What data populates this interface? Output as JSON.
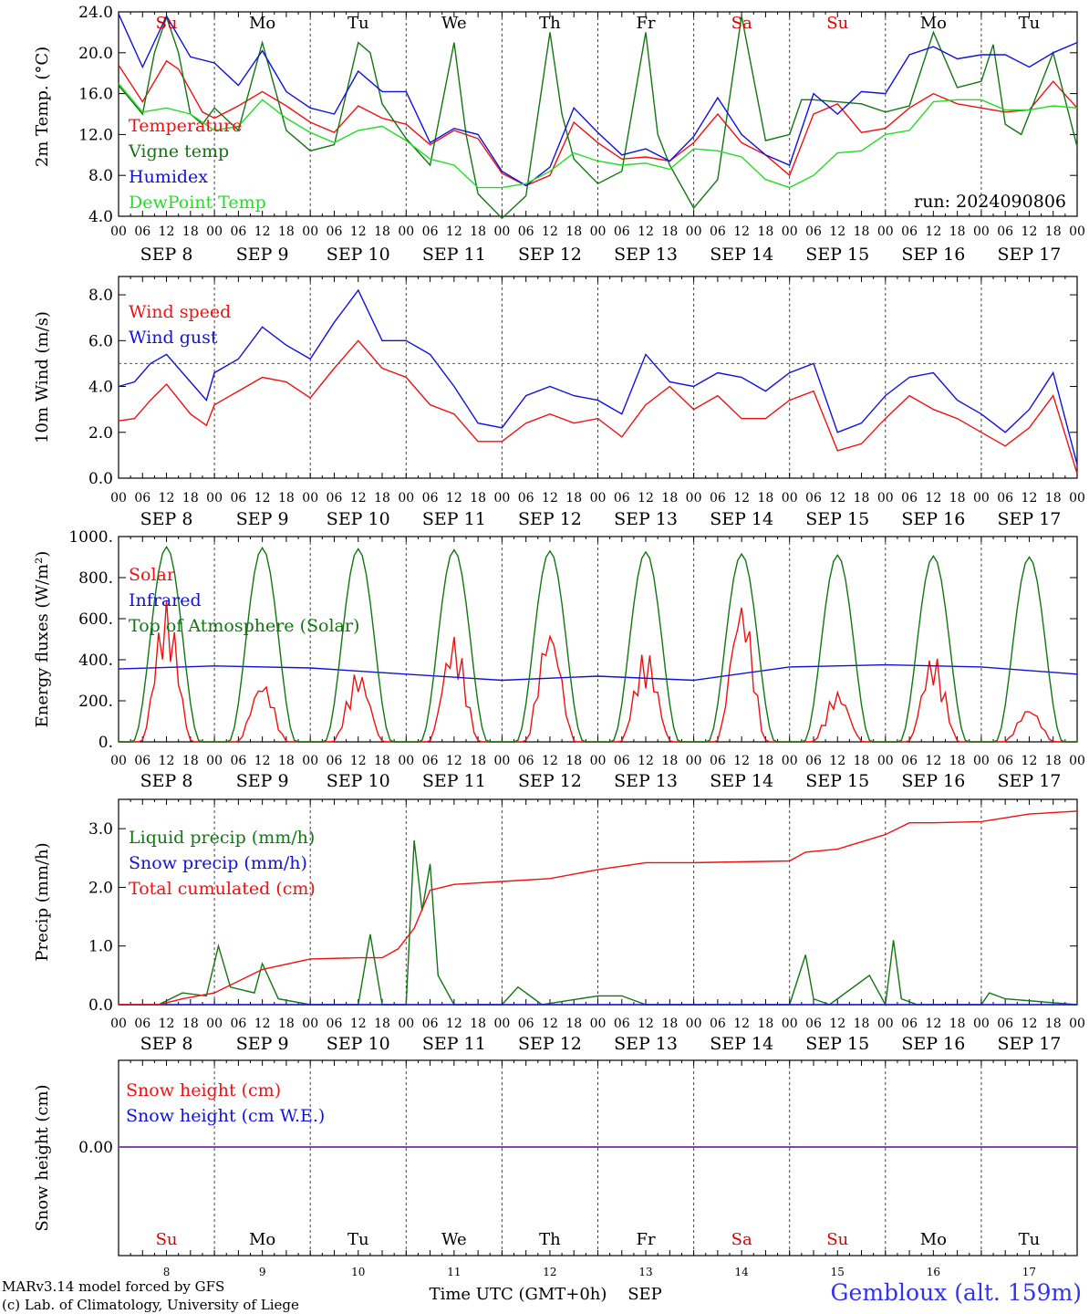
{
  "chart_data": [
    {
      "type": "line",
      "ylabel": "2m Temp. (°C)",
      "ylim": [
        4,
        24
      ],
      "yticks": [
        "4.0",
        "8.0",
        "12.0",
        "16.0",
        "20.0",
        "24.0"
      ],
      "annotation": "run: 2024090806",
      "weekday_labels": [
        {
          "label": "Su",
          "color": "#dd0000"
        },
        {
          "label": "Mo",
          "color": "#000000"
        },
        {
          "label": "Tu",
          "color": "#000000"
        },
        {
          "label": "We",
          "color": "#000000"
        },
        {
          "label": "Th",
          "color": "#000000"
        },
        {
          "label": "Fr",
          "color": "#000000"
        },
        {
          "label": "Sa",
          "color": "#dd0000"
        },
        {
          "label": "Su",
          "color": "#dd0000"
        },
        {
          "label": "Mo",
          "color": "#000000"
        },
        {
          "label": "Tu",
          "color": "#000000"
        }
      ],
      "series": [
        {
          "name": "Temperature",
          "color": "#ee1111",
          "x": [
            0,
            6,
            12,
            15,
            21,
            24,
            30,
            36,
            42,
            48,
            54,
            60,
            66,
            72,
            78,
            84,
            90,
            96,
            102,
            108,
            114,
            120,
            126,
            132,
            138,
            144,
            150,
            156,
            162,
            168,
            174,
            180,
            186,
            192,
            198,
            204,
            210,
            216,
            222,
            228,
            234,
            240
          ],
          "y": [
            18.8,
            15.2,
            19.2,
            18.4,
            14.2,
            13.6,
            14.8,
            16.2,
            14.8,
            13.2,
            12.2,
            14.8,
            13.6,
            13,
            11,
            12.4,
            11.6,
            8.2,
            7,
            8,
            13.2,
            11.2,
            9.6,
            9.8,
            9.4,
            11.2,
            14,
            11.2,
            10,
            8,
            14,
            15,
            12.2,
            12.6,
            14.6,
            16,
            15,
            14.6,
            14.2,
            14.4,
            17.2,
            14.6
          ]
        },
        {
          "name": "Vigne temp",
          "color": "#117711",
          "x": [
            0,
            6,
            9,
            12,
            15,
            18,
            21,
            24,
            30,
            36,
            42,
            48,
            54,
            60,
            63,
            66,
            72,
            78,
            84,
            87,
            90,
            96,
            102,
            108,
            111,
            114,
            120,
            126,
            132,
            135,
            138,
            144,
            150,
            156,
            162,
            168,
            171,
            174,
            180,
            186,
            192,
            198,
            204,
            210,
            216,
            219,
            222,
            226,
            228,
            234,
            240
          ],
          "y": [
            16.8,
            14,
            20,
            23.5,
            20,
            14,
            13,
            14.6,
            12.4,
            21,
            12.4,
            10.4,
            11,
            21,
            20,
            15,
            11.6,
            9,
            21,
            12,
            6.2,
            3.8,
            6,
            22,
            14,
            9.6,
            7.2,
            8.4,
            22,
            12,
            9,
            4.8,
            7.6,
            23.6,
            11.4,
            12,
            15.4,
            15.4,
            15.2,
            15,
            14.2,
            14.8,
            22,
            16.6,
            17.2,
            20.8,
            13,
            12,
            14,
            20,
            10.8
          ]
        },
        {
          "name": "Humidex",
          "color": "#1111dd",
          "x": [
            0,
            6,
            12,
            18,
            24,
            30,
            36,
            42,
            48,
            54,
            60,
            66,
            72,
            78,
            84,
            90,
            96,
            102,
            108,
            114,
            120,
            126,
            132,
            138,
            144,
            150,
            156,
            162,
            168,
            174,
            180,
            186,
            192,
            198,
            204,
            210,
            216,
            222,
            228,
            234,
            240
          ],
          "y": [
            23.8,
            18.6,
            23.6,
            19.6,
            19,
            16.8,
            20.2,
            16.2,
            14.6,
            14,
            18.2,
            16.2,
            16.2,
            11.2,
            12.6,
            12,
            8.4,
            7,
            8.8,
            14.6,
            12.2,
            10,
            10.6,
            9.4,
            11.8,
            15.6,
            12,
            10,
            9,
            16,
            14,
            16.2,
            16,
            19.8,
            20.6,
            19.4,
            19.8,
            19.8,
            18.6,
            20,
            21
          ]
        },
        {
          "name": "DewPoint Temp",
          "color": "#22dd22",
          "x": [
            0,
            6,
            12,
            18,
            24,
            30,
            36,
            42,
            48,
            54,
            60,
            66,
            72,
            78,
            84,
            90,
            96,
            102,
            108,
            114,
            120,
            126,
            132,
            138,
            144,
            150,
            156,
            162,
            168,
            174,
            180,
            186,
            192,
            198,
            204,
            210,
            216,
            222,
            228,
            234,
            240
          ],
          "y": [
            17,
            14.2,
            14.6,
            14,
            12.4,
            12.8,
            15.4,
            13.6,
            12.2,
            11.2,
            12.4,
            12.8,
            11.4,
            9.6,
            9,
            6.8,
            6.8,
            7.2,
            8.4,
            10.2,
            9.4,
            9,
            9.2,
            8.6,
            10.6,
            10.4,
            9.8,
            7.6,
            6.8,
            8,
            10.2,
            10.4,
            12,
            12.4,
            15.2,
            15.4,
            15.4,
            14.4,
            14.4,
            14.8,
            14.6
          ]
        }
      ]
    },
    {
      "type": "line",
      "ylabel": "10m Wind (m/s)",
      "ylim": [
        0,
        8.8
      ],
      "yticks": [
        "0.0",
        "2.0",
        "4.0",
        "6.0",
        "8.0"
      ],
      "reference_line": 5,
      "series": [
        {
          "name": "Wind speed",
          "color": "#ee1111",
          "x": [
            0,
            4,
            8,
            12,
            18,
            22,
            24,
            30,
            36,
            42,
            48,
            54,
            60,
            66,
            72,
            78,
            84,
            90,
            96,
            102,
            108,
            114,
            120,
            126,
            132,
            138,
            144,
            150,
            156,
            162,
            168,
            174,
            180,
            186,
            192,
            198,
            204,
            210,
            216,
            222,
            228,
            234,
            240
          ],
          "y": [
            2.5,
            2.6,
            3.4,
            4.1,
            2.8,
            2.3,
            3.2,
            3.8,
            4.4,
            4.2,
            3.5,
            4.8,
            6,
            4.8,
            4.4,
            3.2,
            2.8,
            1.6,
            1.6,
            2.4,
            2.8,
            2.4,
            2.6,
            1.8,
            3.2,
            4,
            3,
            3.6,
            2.6,
            2.6,
            3.4,
            3.8,
            1.2,
            1.5,
            2.6,
            3.6,
            3,
            2.6,
            2,
            1.4,
            2.2,
            3.6,
            0.2
          ]
        },
        {
          "name": "Wind gust",
          "color": "#1111dd",
          "x": [
            0,
            4,
            8,
            12,
            18,
            22,
            24,
            30,
            36,
            42,
            48,
            54,
            60,
            66,
            72,
            78,
            84,
            90,
            96,
            102,
            108,
            114,
            120,
            126,
            132,
            138,
            144,
            150,
            156,
            162,
            168,
            174,
            180,
            186,
            192,
            198,
            204,
            210,
            216,
            222,
            228,
            234,
            240
          ],
          "y": [
            4,
            4.2,
            5,
            5.4,
            4.2,
            3.4,
            4.6,
            5.2,
            6.6,
            5.8,
            5.2,
            6.8,
            8.2,
            6,
            6,
            5.4,
            4,
            2.4,
            2.2,
            3.6,
            4,
            3.6,
            3.4,
            2.8,
            5.4,
            4.2,
            4,
            4.6,
            4.4,
            3.8,
            4.6,
            5,
            2,
            2.4,
            3.6,
            4.4,
            4.6,
            3.4,
            2.8,
            2,
            3,
            4.6,
            0.6
          ]
        }
      ]
    },
    {
      "type": "line",
      "ylabel": "Energy fluxes (W/m²)",
      "ylim": [
        0,
        1000
      ],
      "yticks": [
        "0.",
        "200.",
        "400.",
        "600.",
        "800.",
        "1000."
      ],
      "series": [
        {
          "name": "Solar",
          "color": "#ee1111",
          "peak_hours": [
            12,
            36,
            60,
            84,
            108,
            132,
            156,
            180,
            204,
            228
          ],
          "peaks": [
            690,
            300,
            350,
            520,
            570,
            450,
            700,
            250,
            430,
            170
          ]
        },
        {
          "name": "Infrared",
          "color": "#1111dd",
          "x": [
            0,
            24,
            48,
            72,
            96,
            120,
            144,
            168,
            192,
            216,
            240
          ],
          "y": [
            355,
            370,
            360,
            330,
            300,
            320,
            300,
            365,
            375,
            365,
            330
          ]
        },
        {
          "name": "Top of Atmosphere (Solar)",
          "color": "#117711",
          "peak_hours": [
            12,
            36,
            60,
            84,
            108,
            132,
            156,
            180,
            204,
            228
          ],
          "peaks": [
            950,
            945,
            940,
            935,
            930,
            925,
            915,
            910,
            905,
            900
          ]
        }
      ]
    },
    {
      "type": "line",
      "ylabel": "Precip (mm/h)",
      "ylim": [
        0,
        3.5
      ],
      "yticks": [
        "0.0",
        "1.0",
        "2.0",
        "3.0"
      ],
      "series": [
        {
          "name": "Liquid precip (mm/h)",
          "color": "#117711",
          "x": [
            0,
            10,
            16,
            22,
            25,
            28,
            34,
            36,
            40,
            48,
            60,
            63,
            66,
            72,
            74,
            76,
            78,
            80,
            84,
            96,
            100,
            106,
            120,
            126,
            132,
            168,
            172,
            174,
            178,
            188,
            192,
            194,
            196,
            200,
            216,
            218,
            222,
            240
          ],
          "y": [
            0,
            0,
            0.2,
            0.15,
            1.0,
            0.3,
            0.2,
            0.7,
            0.1,
            0,
            0,
            1.2,
            0,
            0,
            2.8,
            1.6,
            2.4,
            0.5,
            0,
            0,
            0.3,
            0,
            0.15,
            0.15,
            0,
            0,
            0.85,
            0.1,
            0,
            0.5,
            0,
            1.1,
            0.1,
            0,
            0,
            0.2,
            0.1,
            0
          ]
        },
        {
          "name": "Snow precip (mm/h)",
          "color": "#1111dd",
          "x": [
            0,
            240
          ],
          "y": [
            0,
            0
          ]
        },
        {
          "name": "Total cumulated (cm)",
          "color": "#ee1111",
          "x": [
            0,
            10,
            16,
            24,
            36,
            48,
            60,
            66,
            70,
            74,
            78,
            84,
            96,
            108,
            120,
            132,
            144,
            168,
            172,
            180,
            192,
            198,
            204,
            216,
            228,
            240
          ],
          "y": [
            0,
            0,
            0.1,
            0.2,
            0.6,
            0.78,
            0.8,
            0.8,
            0.95,
            1.3,
            1.95,
            2.05,
            2.1,
            2.15,
            2.3,
            2.42,
            2.42,
            2.45,
            2.6,
            2.65,
            2.9,
            3.1,
            3.1,
            3.12,
            3.25,
            3.3
          ]
        }
      ]
    },
    {
      "type": "line",
      "ylabel": "Snow height (cm)",
      "yticks": [
        "0.00"
      ],
      "series": [
        {
          "name": "Snow height (cm)",
          "color": "#ee1111",
          "x": [
            0,
            240
          ],
          "y": [
            0,
            0
          ]
        },
        {
          "name": "Snow height (cm W.E.)",
          "color": "#1111dd",
          "x": [
            0,
            240
          ],
          "y": [
            0,
            0
          ]
        }
      ],
      "xlabel": "Time UTC (GMT+0h)",
      "month_label": "SEP",
      "day_numbers": [
        "8",
        "9",
        "10",
        "11",
        "12",
        "13",
        "14",
        "15",
        "16",
        "17"
      ]
    }
  ],
  "x_axis": {
    "hour_labels": [
      "00",
      "06",
      "12",
      "18"
    ],
    "final_hour_label": "00",
    "day_labels": [
      "SEP  8",
      "SEP  9",
      "SEP 10",
      "SEP 11",
      "SEP 12",
      "SEP 13",
      "SEP 14",
      "SEP 15",
      "SEP 16",
      "SEP 17"
    ]
  },
  "footer": {
    "model": "MARv3.14 model forced by GFS",
    "credit": "(c) Lab. of Climatology, University of Liege",
    "station": "Gembloux (alt. 159m)"
  },
  "colors": {
    "red": "#ee1111",
    "green": "#117711",
    "blue": "#1111dd",
    "lightgreen": "#22dd22",
    "station": "#3333ee"
  }
}
